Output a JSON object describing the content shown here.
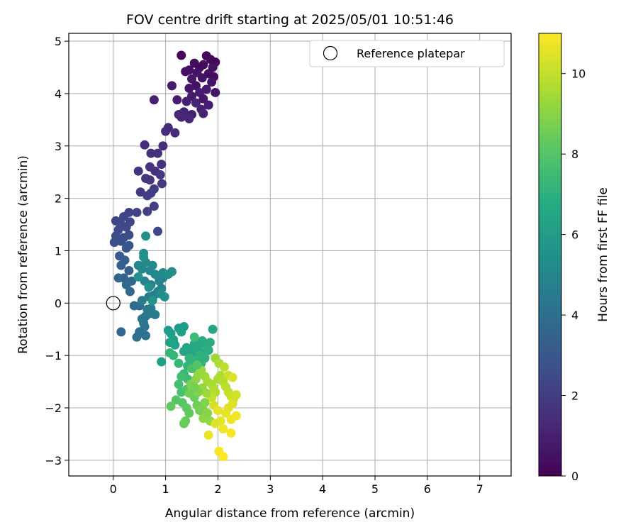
{
  "chart_data": {
    "type": "scatter",
    "title": "FOV centre drift starting at 2025/05/01 10:51:46",
    "xlabel": "Angular distance from reference (arcmin)",
    "ylabel": "Rotation from reference (arcmin)",
    "xlim": [
      -0.85,
      7.6
    ],
    "ylim": [
      -3.3,
      5.15
    ],
    "xticks": [
      0,
      1,
      2,
      3,
      4,
      5,
      6,
      7
    ],
    "yticks": [
      -3,
      -2,
      -1,
      0,
      1,
      2,
      3,
      4,
      5
    ],
    "grid": true,
    "legend": {
      "placement": "top-right",
      "entries": [
        "Reference platepar"
      ]
    },
    "reference_point": {
      "x": 0,
      "y": 0,
      "label": "Reference platepar"
    },
    "colorbar": {
      "label": "Hours from first FF file",
      "range": [
        0,
        11
      ],
      "ticks": [
        0,
        2,
        4,
        6,
        8,
        10
      ],
      "colormap": "viridis"
    },
    "series": [
      {
        "color_by": "hours",
        "points": [
          [
            1.3,
            4.73,
            0.2
          ],
          [
            1.78,
            4.72,
            0.2
          ],
          [
            1.86,
            4.65,
            0.3
          ],
          [
            1.95,
            4.6,
            0.2
          ],
          [
            1.55,
            4.58,
            0.3
          ],
          [
            1.72,
            4.55,
            0.4
          ],
          [
            1.65,
            4.5,
            0.3
          ],
          [
            1.9,
            4.5,
            0.5
          ],
          [
            1.45,
            4.45,
            0.4
          ],
          [
            1.38,
            4.42,
            0.5
          ],
          [
            1.6,
            4.4,
            0.6
          ],
          [
            1.82,
            4.38,
            0.4
          ],
          [
            1.92,
            4.32,
            0.3
          ],
          [
            1.7,
            4.3,
            0.6
          ],
          [
            1.5,
            4.28,
            0.7
          ],
          [
            1.88,
            4.22,
            0.6
          ],
          [
            1.58,
            4.15,
            0.5
          ],
          [
            1.12,
            4.15,
            0.8
          ],
          [
            1.45,
            4.1,
            0.7
          ],
          [
            1.78,
            4.08,
            0.8
          ],
          [
            1.95,
            4.02,
            0.6
          ],
          [
            1.65,
            4.02,
            0.9
          ],
          [
            1.5,
            3.95,
            0.8
          ],
          [
            1.72,
            3.9,
            0.7
          ],
          [
            1.22,
            3.88,
            0.9
          ],
          [
            0.78,
            3.88,
            1.0
          ],
          [
            1.4,
            3.85,
            1.0
          ],
          [
            1.58,
            3.82,
            1.1
          ],
          [
            1.82,
            3.78,
            0.9
          ],
          [
            1.68,
            3.7,
            1.0
          ],
          [
            1.35,
            3.65,
            1.1
          ],
          [
            1.25,
            3.6,
            1.2
          ],
          [
            1.5,
            3.6,
            1.0
          ],
          [
            1.72,
            3.62,
            1.1
          ],
          [
            1.3,
            3.55,
            1.2
          ],
          [
            1.45,
            3.52,
            1.2
          ],
          [
            1.05,
            3.35,
            1.3
          ],
          [
            1.0,
            3.28,
            1.4
          ],
          [
            1.18,
            3.25,
            1.3
          ],
          [
            0.6,
            3.02,
            1.5
          ],
          [
            0.95,
            3.0,
            1.4
          ],
          [
            0.72,
            2.86,
            1.5
          ],
          [
            0.85,
            2.86,
            1.6
          ],
          [
            0.92,
            2.65,
            1.6
          ],
          [
            0.7,
            2.6,
            1.7
          ],
          [
            0.48,
            2.52,
            1.7
          ],
          [
            0.8,
            2.52,
            1.5
          ],
          [
            0.9,
            2.45,
            1.8
          ],
          [
            0.62,
            2.38,
            1.8
          ],
          [
            0.7,
            2.35,
            1.7
          ],
          [
            0.93,
            2.28,
            1.9
          ],
          [
            0.78,
            2.18,
            1.9
          ],
          [
            0.52,
            2.12,
            1.9
          ],
          [
            0.72,
            2.1,
            2.0
          ],
          [
            0.65,
            2.05,
            2.0
          ],
          [
            0.78,
            1.85,
            2.1
          ],
          [
            0.65,
            1.75,
            2.1
          ],
          [
            0.45,
            1.73,
            2.2
          ],
          [
            0.3,
            1.73,
            2.2
          ],
          [
            0.2,
            1.65,
            2.3
          ],
          [
            0.05,
            1.57,
            2.3
          ],
          [
            0.32,
            1.55,
            2.3
          ],
          [
            0.15,
            1.5,
            2.4
          ],
          [
            0.25,
            1.45,
            2.4
          ],
          [
            0.1,
            1.4,
            2.5
          ],
          [
            0.85,
            1.37,
            2.4
          ],
          [
            0.3,
            1.3,
            2.5
          ],
          [
            0.05,
            1.28,
            2.6
          ],
          [
            0.2,
            1.25,
            2.6
          ],
          [
            0.15,
            1.18,
            2.7
          ],
          [
            0.02,
            1.16,
            2.7
          ],
          [
            0.3,
            1.1,
            2.8
          ],
          [
            0.25,
            1.05,
            3.0
          ],
          [
            0.12,
            0.9,
            3.1
          ],
          [
            0.22,
            0.82,
            3.2
          ],
          [
            0.15,
            0.72,
            3.3
          ],
          [
            0.3,
            0.62,
            3.4
          ],
          [
            0.2,
            0.48,
            3.4
          ],
          [
            0.1,
            0.48,
            3.5
          ],
          [
            0.35,
            0.42,
            3.6
          ],
          [
            0.25,
            0.35,
            3.7
          ],
          [
            0.32,
            0.22,
            3.7
          ],
          [
            0.4,
            -0.05,
            3.8
          ],
          [
            0.5,
            -0.05,
            3.9
          ],
          [
            0.15,
            -0.55,
            3.6
          ],
          [
            0.5,
            -0.55,
            4.0
          ],
          [
            0.45,
            -0.65,
            4.1
          ],
          [
            0.62,
            -0.62,
            4.2
          ],
          [
            0.6,
            -0.45,
            4.3
          ],
          [
            0.58,
            -0.38,
            4.3
          ],
          [
            0.55,
            -0.3,
            4.4
          ],
          [
            0.62,
            -0.25,
            4.4
          ],
          [
            0.7,
            -0.2,
            4.5
          ],
          [
            0.65,
            -0.12,
            4.5
          ],
          [
            0.8,
            -0.22,
            4.6
          ],
          [
            0.72,
            -0.1,
            4.6
          ],
          [
            0.55,
            0.05,
            4.6
          ],
          [
            0.68,
            0.12,
            4.7
          ],
          [
            0.78,
            0.15,
            4.7
          ],
          [
            0.85,
            0.22,
            4.8
          ],
          [
            0.92,
            0.28,
            4.8
          ],
          [
            0.72,
            0.35,
            4.8
          ],
          [
            0.6,
            0.42,
            4.9
          ],
          [
            0.88,
            0.42,
            4.9
          ],
          [
            0.95,
            0.48,
            5.0
          ],
          [
            0.8,
            0.55,
            5.0
          ],
          [
            0.7,
            0.62,
            5.0
          ],
          [
            0.55,
            0.65,
            5.1
          ],
          [
            0.48,
            0.72,
            5.1
          ],
          [
            0.75,
            0.72,
            5.2
          ],
          [
            0.62,
            0.78,
            5.2
          ],
          [
            0.85,
            0.52,
            5.2
          ],
          [
            0.95,
            0.58,
            5.3
          ],
          [
            1.05,
            0.55,
            5.3
          ],
          [
            1.12,
            0.6,
            5.4
          ],
          [
            0.98,
            0.12,
            5.4
          ],
          [
            0.9,
            0.18,
            5.4
          ],
          [
            0.58,
            0.95,
            5.5
          ],
          [
            0.62,
            1.28,
            5.6
          ],
          [
            0.48,
            0.5,
            5.5
          ],
          [
            0.58,
            0.88,
            5.6
          ],
          [
            0.68,
            0.3,
            5.6
          ],
          [
            0.75,
            0.05,
            5.7
          ],
          [
            0.92,
            -1.12,
            6.2
          ],
          [
            1.05,
            -0.52,
            6.0
          ],
          [
            1.1,
            -0.58,
            6.1
          ],
          [
            1.15,
            -0.7,
            6.2
          ],
          [
            1.08,
            -0.75,
            6.3
          ],
          [
            1.18,
            -0.8,
            6.3
          ],
          [
            1.25,
            -0.48,
            6.0
          ],
          [
            1.35,
            -0.45,
            6.1
          ],
          [
            1.3,
            -0.55,
            6.2
          ],
          [
            1.4,
            -0.85,
            6.4
          ],
          [
            1.35,
            -0.92,
            6.4
          ],
          [
            1.45,
            -0.88,
            6.5
          ],
          [
            1.5,
            -0.95,
            6.5
          ],
          [
            1.55,
            -0.78,
            6.6
          ],
          [
            1.62,
            -0.85,
            6.6
          ],
          [
            1.7,
            -0.72,
            6.7
          ],
          [
            1.78,
            -0.8,
            6.7
          ],
          [
            1.85,
            -0.75,
            6.8
          ],
          [
            1.72,
            -0.95,
            6.8
          ],
          [
            1.82,
            -0.9,
            6.9
          ],
          [
            1.9,
            -0.5,
            6.5
          ],
          [
            1.65,
            -1.0,
            7.0
          ],
          [
            1.75,
            -1.05,
            7.0
          ],
          [
            1.68,
            -1.15,
            7.1
          ],
          [
            1.55,
            -1.1,
            7.1
          ],
          [
            1.45,
            -1.05,
            7.2
          ],
          [
            1.42,
            -1.2,
            7.2
          ],
          [
            1.08,
            -0.95,
            7.3
          ],
          [
            1.15,
            -1.0,
            7.3
          ],
          [
            1.25,
            -1.15,
            7.4
          ],
          [
            1.35,
            -1.35,
            7.4
          ],
          [
            1.42,
            -1.45,
            7.5
          ],
          [
            1.55,
            -0.65,
            7.5
          ],
          [
            1.3,
            -1.4,
            7.6
          ],
          [
            1.25,
            -1.55,
            7.7
          ],
          [
            1.3,
            -1.7,
            7.8
          ],
          [
            1.4,
            -1.65,
            7.9
          ],
          [
            1.2,
            -1.85,
            8.0
          ],
          [
            1.32,
            -1.9,
            8.1
          ],
          [
            1.4,
            -2.0,
            8.2
          ],
          [
            1.45,
            -2.1,
            8.3
          ],
          [
            1.38,
            -2.25,
            8.4
          ],
          [
            1.35,
            -2.3,
            8.5
          ],
          [
            1.1,
            -1.97,
            8.3
          ],
          [
            1.55,
            -1.8,
            8.5
          ],
          [
            1.6,
            -1.95,
            8.6
          ],
          [
            1.65,
            -2.05,
            8.7
          ],
          [
            1.7,
            -2.0,
            8.8
          ],
          [
            1.75,
            -1.9,
            8.9
          ],
          [
            1.8,
            -2.1,
            9.0
          ],
          [
            1.72,
            -2.2,
            9.1
          ],
          [
            1.85,
            -2.25,
            9.2
          ],
          [
            1.48,
            -1.55,
            8.8
          ],
          [
            1.52,
            -1.6,
            9.0
          ],
          [
            1.58,
            -1.45,
            9.1
          ],
          [
            1.62,
            -1.35,
            9.2
          ],
          [
            1.68,
            -1.28,
            9.3
          ],
          [
            1.75,
            -1.4,
            9.4
          ],
          [
            1.8,
            -1.5,
            9.5
          ],
          [
            1.88,
            -1.55,
            9.6
          ],
          [
            1.92,
            -1.62,
            9.7
          ],
          [
            1.95,
            -1.7,
            9.8
          ],
          [
            2.0,
            -1.45,
            9.6
          ],
          [
            2.05,
            -1.38,
            9.7
          ],
          [
            2.1,
            -1.5,
            9.8
          ],
          [
            2.15,
            -1.6,
            9.9
          ],
          [
            2.2,
            -1.7,
            10.0
          ],
          [
            2.25,
            -1.78,
            10.1
          ],
          [
            2.3,
            -1.82,
            10.2
          ],
          [
            2.35,
            -1.75,
            10.3
          ],
          [
            2.28,
            -1.92,
            10.4
          ],
          [
            2.2,
            -2.0,
            10.5
          ],
          [
            2.15,
            -2.1,
            10.6
          ],
          [
            2.25,
            -2.22,
            10.7
          ],
          [
            2.35,
            -2.15,
            10.8
          ],
          [
            2.05,
            -2.25,
            10.6
          ],
          [
            1.95,
            -2.3,
            10.5
          ],
          [
            2.1,
            -2.4,
            10.8
          ],
          [
            2.25,
            -2.48,
            10.9
          ],
          [
            1.82,
            -2.52,
            10.7
          ],
          [
            2.02,
            -2.83,
            10.9
          ],
          [
            2.1,
            -2.93,
            11.0
          ],
          [
            1.5,
            -1.25,
            7.8
          ],
          [
            1.6,
            -1.18,
            8.0
          ],
          [
            1.95,
            -1.05,
            9.4
          ],
          [
            2.02,
            -1.15,
            9.6
          ],
          [
            2.12,
            -1.22,
            9.9
          ],
          [
            2.2,
            -1.38,
            10.2
          ],
          [
            2.28,
            -1.42,
            10.4
          ],
          [
            1.88,
            -1.8,
            10.0
          ],
          [
            1.92,
            -1.95,
            10.3
          ],
          [
            2.0,
            -2.05,
            10.6
          ],
          [
            1.7,
            -1.62,
            9.2
          ],
          [
            1.78,
            -1.72,
            9.4
          ],
          [
            1.62,
            -1.7,
            8.9
          ],
          [
            1.55,
            -1.6,
            8.7
          ],
          [
            1.45,
            -1.72,
            8.6
          ]
        ]
      }
    ]
  },
  "colors": {
    "reference_marker": "#000000",
    "grid": "#b0b0b0",
    "axes": "#000000"
  }
}
